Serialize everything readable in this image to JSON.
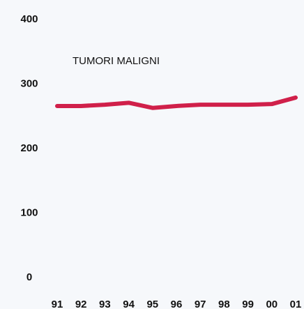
{
  "chart_data": {
    "type": "line",
    "annotation": "TUMORI  MALIGNI",
    "categories": [
      "91",
      "92",
      "93",
      "94",
      "95",
      "96",
      "97",
      "98",
      "99",
      "00",
      "01"
    ],
    "series": [
      {
        "name": null,
        "color": "#d0204a",
        "values": [
          266,
          266,
          268,
          271,
          263,
          266,
          268,
          268,
          268,
          269,
          279
        ]
      }
    ],
    "ylim": [
      0,
      400
    ],
    "yticks": [
      0,
      100,
      200,
      300,
      400
    ],
    "grid": false
  }
}
